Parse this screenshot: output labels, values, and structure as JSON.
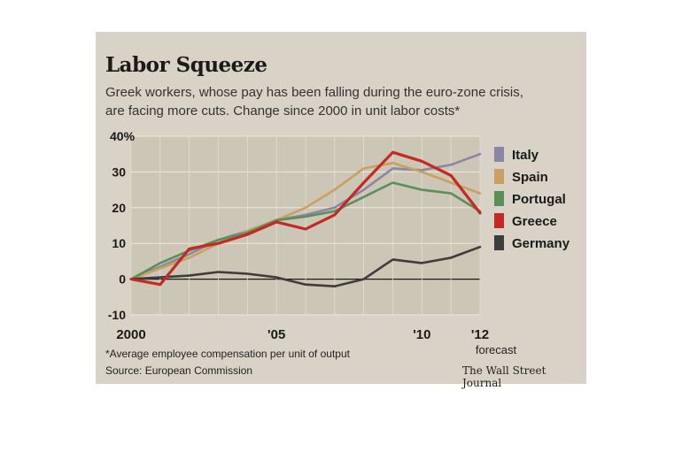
{
  "header": {
    "title": "Labor Squeeze",
    "subtitle_line1": "Greek workers, whose pay has been falling during the euro-zone crisis,",
    "subtitle_line2": "are facing more cuts. Change since 2000 in unit labor costs*"
  },
  "footer": {
    "footnote": "*Average employee compensation per unit of output",
    "source": "Source: European Commission",
    "credit": "The Wall Street Journal"
  },
  "chart_data": {
    "type": "line",
    "x": [
      2000,
      2001,
      2002,
      2003,
      2004,
      2005,
      2006,
      2007,
      2008,
      2009,
      2010,
      2011,
      2012
    ],
    "xlim": [
      2000,
      2012
    ],
    "ylim": [
      -10,
      40
    ],
    "unit": "%",
    "forecast_label": "forecast",
    "x_ticks": [
      {
        "value": 2000,
        "label": "2000"
      },
      {
        "value": 2005,
        "label": "'05"
      },
      {
        "value": 2010,
        "label": "'10"
      },
      {
        "value": 2012,
        "label": "'12"
      }
    ],
    "y_ticks": [
      {
        "value": 40,
        "label": "40%"
      },
      {
        "value": 30,
        "label": "30"
      },
      {
        "value": 20,
        "label": "20"
      },
      {
        "value": 10,
        "label": "10"
      },
      {
        "value": 0,
        "label": "0"
      },
      {
        "value": -10,
        "label": "-10"
      }
    ],
    "grid": true,
    "legend_position": "right",
    "series": [
      {
        "name": "Italy",
        "color": "#8a86a3",
        "values": [
          0,
          3.5,
          7,
          11,
          13.5,
          16.5,
          18,
          20,
          25,
          31,
          30.5,
          32,
          35
        ]
      },
      {
        "name": "Spain",
        "color": "#c9a062",
        "values": [
          0,
          3,
          6,
          10,
          13.5,
          16.5,
          20,
          25,
          31,
          32.5,
          30,
          27,
          24
        ]
      },
      {
        "name": "Portugal",
        "color": "#5a8f5a",
        "values": [
          0,
          4.5,
          8,
          11,
          13,
          16.5,
          17.5,
          19,
          23,
          27,
          25,
          24,
          19
        ]
      },
      {
        "name": "Greece",
        "color": "#c42a23",
        "values": [
          0,
          -1.5,
          8.5,
          10,
          12.5,
          16,
          14,
          18,
          27,
          35.5,
          33,
          29,
          18.5
        ]
      },
      {
        "name": "Germany",
        "color": "#3d3d3d",
        "values": [
          0,
          0.5,
          1,
          2,
          1.5,
          0.5,
          -1.5,
          -2,
          0,
          5.5,
          4.5,
          6,
          9
        ]
      }
    ]
  }
}
